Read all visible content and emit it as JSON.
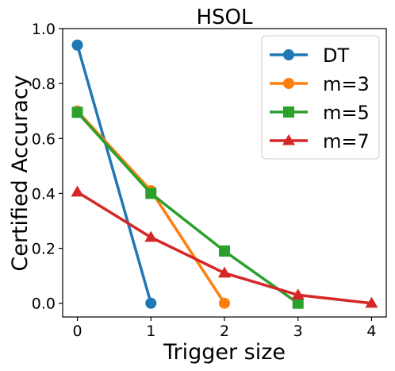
{
  "chart_data": {
    "type": "line",
    "title": "HSOL",
    "xlabel": "Trigger size",
    "ylabel": "Certified Accuracy",
    "xlim": [
      -0.2,
      4.2
    ],
    "ylim": [
      -0.05,
      1.0
    ],
    "xticks": [
      0,
      1,
      2,
      3,
      4
    ],
    "yticks": [
      0.0,
      0.2,
      0.4,
      0.6,
      0.8,
      1.0
    ],
    "xtick_labels": [
      "0",
      "1",
      "2",
      "3",
      "4"
    ],
    "ytick_labels": [
      "0.0",
      "0.2",
      "0.4",
      "0.6",
      "0.8",
      "1.0"
    ],
    "grid": false,
    "legend_position": "top-right",
    "series": [
      {
        "name": "DT",
        "color": "#1f77b4",
        "marker": "circle",
        "x": [
          0,
          1
        ],
        "y": [
          0.94,
          0.0
        ]
      },
      {
        "name": "m=3",
        "color": "#ff7f0e",
        "marker": "circle",
        "x": [
          0,
          1,
          2
        ],
        "y": [
          0.7,
          0.41,
          0.0
        ]
      },
      {
        "name": "m=5",
        "color": "#2ca02c",
        "marker": "square",
        "x": [
          0,
          1,
          2,
          3
        ],
        "y": [
          0.695,
          0.4,
          0.19,
          0.0
        ]
      },
      {
        "name": "m=7",
        "color": "#d62728",
        "marker": "triangle",
        "x": [
          0,
          1,
          2,
          3,
          4
        ],
        "y": [
          0.405,
          0.24,
          0.11,
          0.03,
          0.0
        ]
      }
    ]
  }
}
